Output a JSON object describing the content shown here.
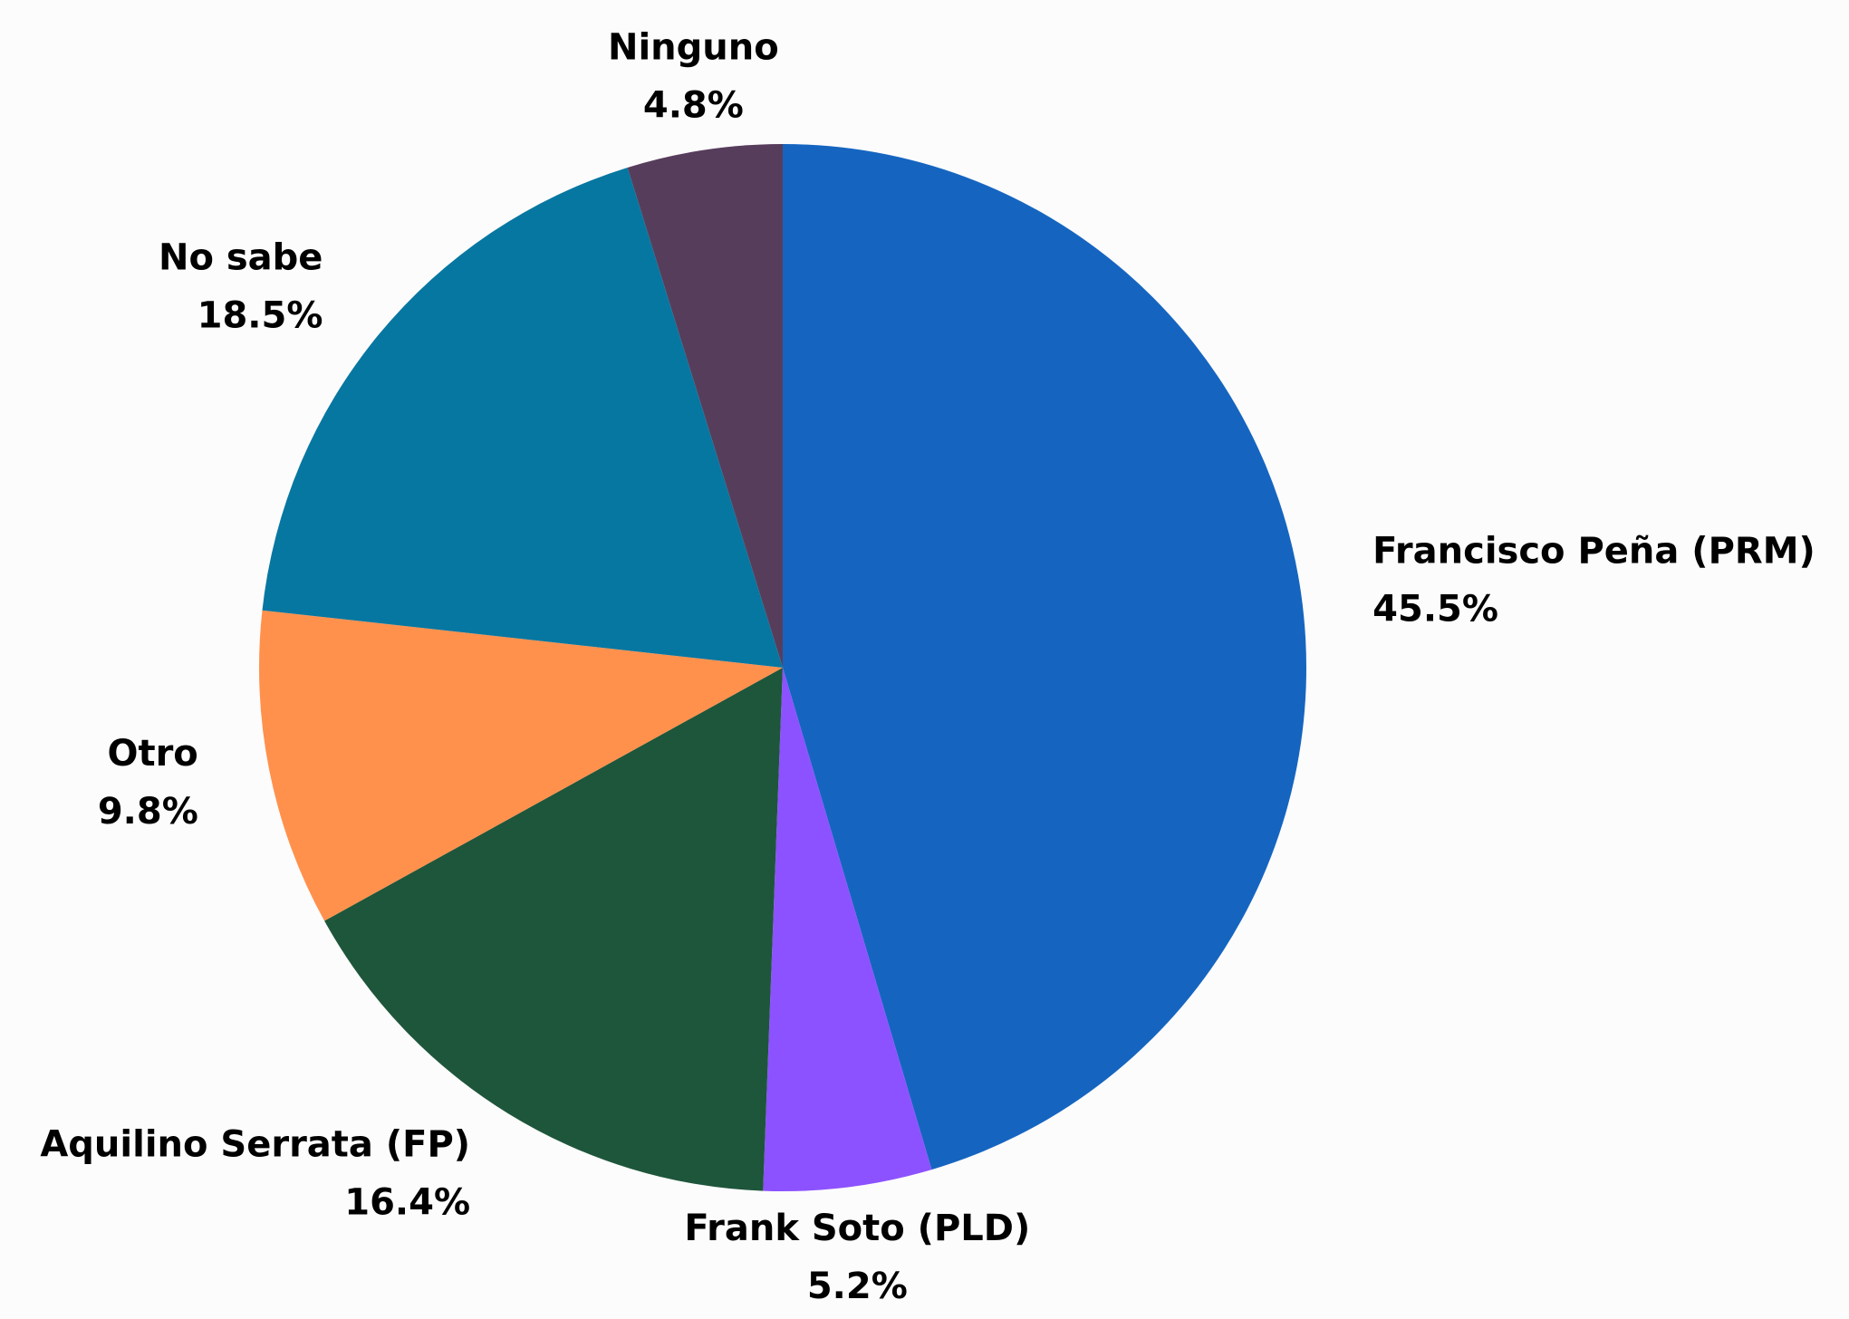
{
  "chart_data": {
    "type": "pie",
    "categories": [
      "Francisco Peña (PRM)",
      "Frank Soto (PLD)",
      "Aquilino Serrata (FP)",
      "Otro",
      "No sabe",
      "Ninguno"
    ],
    "values": [
      45.5,
      5.2,
      16.4,
      9.8,
      18.5,
      4.8
    ],
    "value_labels": [
      "45.5%",
      "5.2%",
      "16.4%",
      "9.8%",
      "18.5%",
      "4.8%"
    ],
    "colors": [
      "#1565c0",
      "#8c52ff",
      "#1e563b",
      "#ff914d",
      "#0677a1",
      "#573d5c"
    ]
  }
}
